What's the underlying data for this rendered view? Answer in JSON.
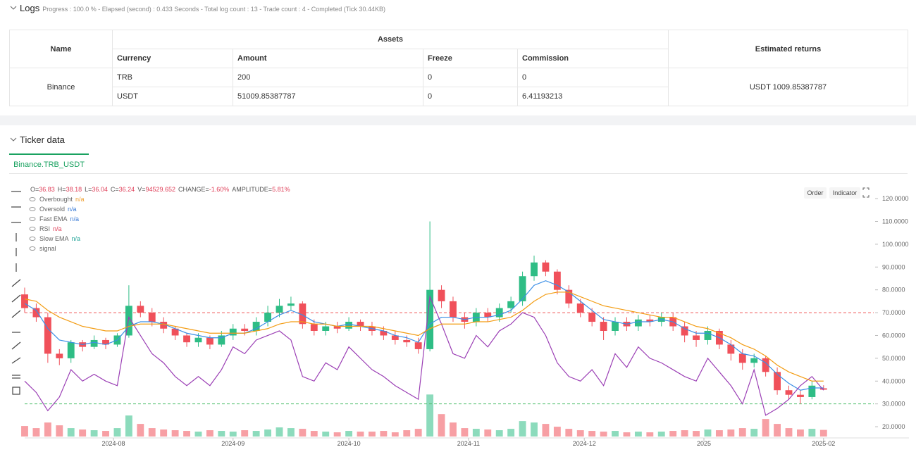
{
  "logs": {
    "title": "Logs",
    "status": "Progress : 100.0 % - Elapsed (second) : 0.433 Seconds - Total log count : 13 - Trade count : 4 - Completed (Tick 30.44KB)"
  },
  "table": {
    "headers": {
      "name": "Name",
      "assets": "Assets",
      "returns": "Estimated returns"
    },
    "columns": [
      "Currency",
      "Amount",
      "Freeze",
      "Commission"
    ],
    "exchange": "Binance",
    "rows": [
      [
        "TRB",
        "200",
        "0",
        "0"
      ],
      [
        "USDT",
        "51009.85387787",
        "0",
        "6.41193213"
      ]
    ],
    "returns": "USDT 1009.85387787"
  },
  "ticker": {
    "title": "Ticker data",
    "tab": "Binance.TRB_USDT"
  },
  "chart_data": {
    "type": "candlestick",
    "info": [
      {
        "label": "O=",
        "value": "36.83"
      },
      {
        "label": "H=",
        "value": "38.18"
      },
      {
        "label": "L=",
        "value": "36.04"
      },
      {
        "label": "C=",
        "value": "36.24"
      },
      {
        "label": "V=",
        "value": "94529.652"
      },
      {
        "label": "CHANGE=",
        "value": "-1.60%"
      },
      {
        "label": "AMPLITUDE=",
        "value": "5.81%"
      }
    ],
    "buttons": [
      "Order",
      "Indicator"
    ],
    "up_color": "#2ebd85",
    "down_color": "#f0505a",
    "xlim": [
      0,
      220
    ],
    "xticks": [
      {
        "value": 23,
        "label": "2024-08"
      },
      {
        "value": 54,
        "label": "2024-09"
      },
      {
        "value": 84,
        "label": "2024-10"
      },
      {
        "value": 115,
        "label": "2024-11"
      },
      {
        "value": 145,
        "label": "2024-12"
      },
      {
        "value": 176,
        "label": "2025"
      },
      {
        "value": 207,
        "label": "2025-02"
      }
    ],
    "ylim": [
      15.7,
      126.2
    ],
    "yticks": [
      {
        "value": 20,
        "label": "20.0000"
      },
      {
        "value": 30,
        "label": "30.0000"
      },
      {
        "value": 40,
        "label": "40.0000"
      },
      {
        "value": 50,
        "label": "50.0000"
      },
      {
        "value": 60,
        "label": "60.0000"
      },
      {
        "value": 70,
        "label": "70.0000"
      },
      {
        "value": 80,
        "label": "80.0000"
      },
      {
        "value": 90,
        "label": "90.0000"
      },
      {
        "value": 100,
        "label": "100.0000"
      },
      {
        "value": 110,
        "label": "110.0000"
      },
      {
        "value": 120,
        "label": "120.0000"
      }
    ],
    "y2lim": [
      0,
      3600000
    ],
    "x": [
      0,
      3,
      6,
      9,
      12,
      15,
      18,
      21,
      24,
      27,
      30,
      33,
      36,
      39,
      42,
      45,
      48,
      51,
      54,
      57,
      60,
      63,
      66,
      69,
      72,
      75,
      78,
      81,
      84,
      87,
      90,
      93,
      96,
      99,
      102,
      105,
      108,
      111,
      114,
      117,
      120,
      123,
      126,
      129,
      132,
      135,
      138,
      141,
      144,
      147,
      150,
      153,
      156,
      159,
      162,
      165,
      168,
      171,
      174,
      177,
      180,
      183,
      186,
      189,
      192,
      195,
      198,
      201,
      204,
      207
    ],
    "open": [
      78,
      72,
      68,
      52,
      50,
      57,
      55,
      58,
      56,
      60,
      73,
      70,
      66,
      63,
      60,
      57,
      59,
      56,
      60,
      63,
      62,
      66,
      70,
      73,
      74,
      65,
      62,
      64,
      63,
      66,
      64,
      62,
      60,
      58,
      57,
      54,
      80,
      75,
      68,
      66,
      70,
      68,
      72,
      75,
      86,
      92,
      88,
      80,
      74,
      70,
      66,
      62,
      66,
      64,
      67,
      66,
      68,
      64,
      60,
      58,
      62,
      56,
      52,
      48,
      50,
      44,
      36,
      34,
      33,
      36.83
    ],
    "high": [
      81,
      74,
      70,
      54,
      58,
      58,
      60,
      59,
      61,
      82,
      75,
      72,
      68,
      64,
      61,
      61,
      60,
      62,
      65,
      65,
      68,
      73,
      76,
      77,
      75,
      67,
      66,
      66,
      68,
      67,
      66,
      64,
      62,
      60,
      59,
      110,
      82,
      77,
      70,
      72,
      72,
      74,
      77,
      88,
      95,
      93,
      89,
      82,
      76,
      72,
      68,
      68,
      68,
      69,
      69,
      70,
      70,
      66,
      62,
      64,
      63,
      58,
      54,
      52,
      51,
      46,
      38,
      36,
      40,
      38.18
    ],
    "low": [
      70,
      66,
      48,
      47,
      48,
      53,
      54,
      54,
      55,
      59,
      68,
      64,
      61,
      58,
      55,
      55,
      54,
      55,
      58,
      60,
      60,
      64,
      68,
      71,
      63,
      60,
      60,
      61,
      62,
      62,
      60,
      58,
      56,
      55,
      52,
      53,
      72,
      66,
      63,
      64,
      66,
      66,
      70,
      73,
      84,
      86,
      78,
      72,
      68,
      64,
      58,
      60,
      62,
      62,
      64,
      64,
      62,
      57,
      55,
      56,
      54,
      49,
      45,
      46,
      42,
      34,
      32,
      30,
      32,
      36.04
    ],
    "close": [
      72,
      68,
      52,
      50,
      57,
      55,
      58,
      56,
      60,
      73,
      70,
      66,
      63,
      60,
      57,
      59,
      56,
      60,
      63,
      62,
      66,
      70,
      73,
      74,
      65,
      62,
      64,
      63,
      66,
      64,
      62,
      60,
      58,
      57,
      54,
      80,
      75,
      68,
      66,
      70,
      68,
      72,
      75,
      86,
      92,
      88,
      80,
      74,
      70,
      66,
      62,
      66,
      64,
      67,
      66,
      68,
      64,
      60,
      58,
      62,
      56,
      52,
      48,
      50,
      44,
      36,
      34,
      33,
      38,
      36.24
    ],
    "volume": {
      "axis": "y2",
      "values": [
        150000,
        120000,
        200000,
        160000,
        120000,
        100000,
        90000,
        80000,
        120000,
        300000,
        180000,
        120000,
        100000,
        90000,
        80000,
        70000,
        90000,
        80000,
        70000,
        90000,
        80000,
        100000,
        130000,
        120000,
        110000,
        80000,
        70000,
        60000,
        80000,
        70000,
        70000,
        80000,
        60000,
        90000,
        110000,
        600000,
        320000,
        200000,
        120000,
        110000,
        100000,
        90000,
        110000,
        220000,
        200000,
        180000,
        140000,
        110000,
        90000,
        80000,
        70000,
        80000,
        60000,
        70000,
        60000,
        70000,
        80000,
        90000,
        80000,
        100000,
        90000,
        100000,
        120000,
        110000,
        250000,
        180000,
        120000,
        100000,
        110000,
        94529.652
      ]
    },
    "series": [
      {
        "name": "Overbought",
        "status": "n/a",
        "color": "#f05a5a",
        "status_color": "#f0a030",
        "level": 70
      },
      {
        "name": "Oversold",
        "status": "n/a",
        "color": "#4cbf6a",
        "status_color": "#3a7bd5",
        "level": 30
      },
      {
        "name": "Fast EMA",
        "status": "n/a",
        "color": "#3a8ee6",
        "status_color": "#3a7bd5",
        "values": [
          74,
          71,
          63,
          58,
          57,
          56,
          57,
          56,
          58,
          64,
          66,
          66,
          65,
          63,
          61,
          60,
          59,
          59,
          61,
          61,
          63,
          66,
          69,
          71,
          69,
          66,
          65,
          64,
          65,
          64,
          63,
          62,
          60,
          59,
          57,
          65,
          68,
          68,
          67,
          68,
          68,
          69,
          71,
          76,
          82,
          84,
          82,
          79,
          75,
          71,
          67,
          66,
          65,
          66,
          66,
          67,
          66,
          63,
          61,
          61,
          59,
          56,
          52,
          51,
          48,
          43,
          39,
          36,
          37,
          37
        ]
      },
      {
        "name": "RSI",
        "status": "n/a",
        "color": "#9b3fb5",
        "status_color": "#e0405a",
        "values": [
          40,
          35,
          27,
          33,
          45,
          40,
          43,
          40,
          38,
          68,
          60,
          52,
          48,
          42,
          38,
          42,
          38,
          45,
          55,
          52,
          58,
          60,
          62,
          58,
          42,
          40,
          48,
          45,
          55,
          50,
          45,
          42,
          38,
          35,
          32,
          77,
          65,
          52,
          50,
          60,
          55,
          62,
          65,
          70,
          68,
          60,
          48,
          42,
          40,
          45,
          38,
          52,
          46,
          55,
          50,
          48,
          45,
          42,
          40,
          50,
          44,
          38,
          30,
          45,
          25,
          28,
          32,
          38,
          42,
          36
        ]
      },
      {
        "name": "Slow EMA",
        "status": "n/a",
        "color": "#f39c12",
        "status_color": "#26a69a",
        "values": [
          76,
          75,
          71,
          68,
          66,
          64,
          63,
          62,
          62,
          64,
          65,
          65,
          65,
          64,
          63,
          62,
          61,
          61,
          61,
          61,
          62,
          63,
          65,
          66,
          66,
          65,
          65,
          64,
          64,
          64,
          64,
          63,
          62,
          61,
          60,
          63,
          65,
          65,
          65,
          66,
          66,
          67,
          68,
          71,
          75,
          78,
          79,
          79,
          77,
          75,
          73,
          72,
          71,
          70,
          69,
          68,
          68,
          66,
          64,
          63,
          61,
          59,
          56,
          54,
          51,
          47,
          44,
          42,
          40,
          40
        ]
      },
      {
        "name": "signal"
      }
    ]
  }
}
